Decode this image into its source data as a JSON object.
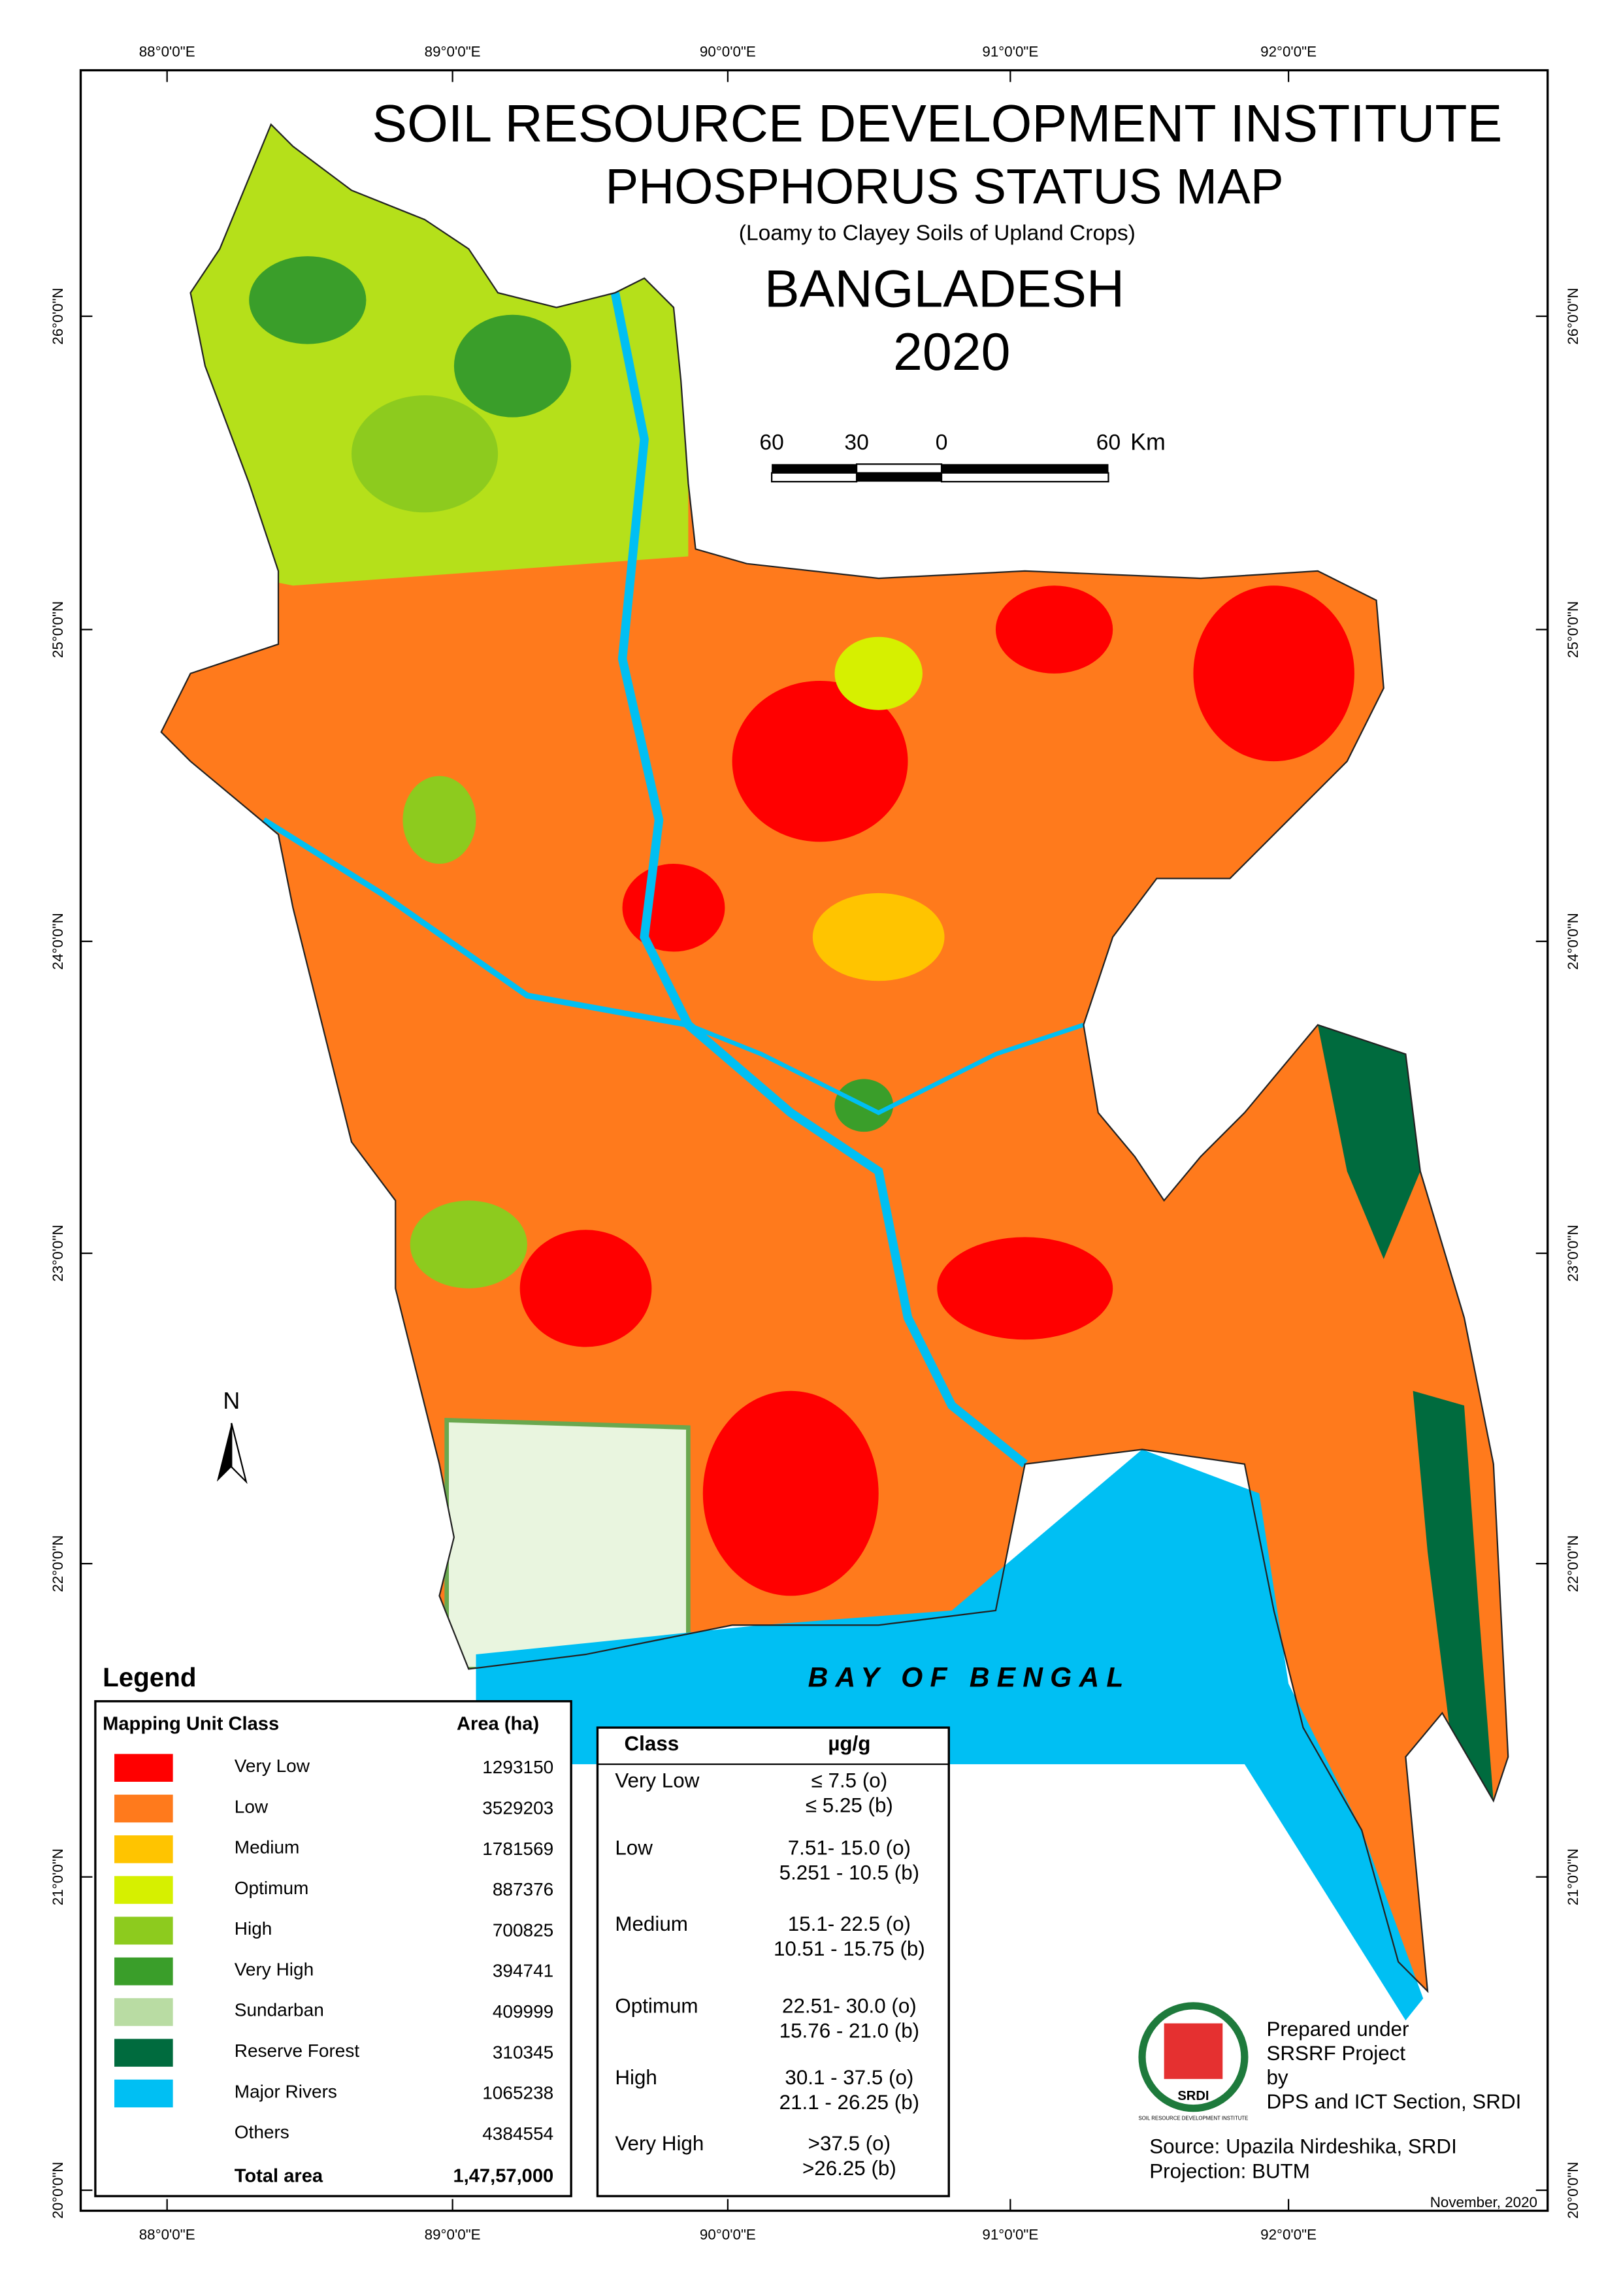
{
  "header": {
    "title": "SOIL RESOURCE DEVELOPMENT INSTITUTE",
    "map_title": "PHOSPHORUS STATUS MAP",
    "subtitle": "(Loamy to Clayey Soils of Upland Crops)",
    "country": "BANGLADESH",
    "year": "2020"
  },
  "scale_bar": {
    "labels": [
      "60",
      "30",
      "0",
      "60"
    ],
    "unit": "Km"
  },
  "graticule": {
    "longitudes": [
      "88°0'0\"E",
      "89°0'0\"E",
      "90°0'0\"E",
      "91°0'0\"E",
      "92°0'0\"E"
    ],
    "latitudes": [
      "26°0'0\"N",
      "25°0'0\"N",
      "24°0'0\"N",
      "23°0'0\"N",
      "22°0'0\"N",
      "21°0'0\"N",
      "20°0'0\"N"
    ]
  },
  "north": "N",
  "sea_label": "BAY OF BENGAL",
  "legend": {
    "title": "Legend",
    "headers": [
      "Mapping Unit  Class",
      "Area (ha)"
    ],
    "rows": [
      {
        "class": "Very Low",
        "area": "1293150",
        "color": "#ff0000"
      },
      {
        "class": "Low",
        "area": "3529203",
        "color": "#ff7a1c"
      },
      {
        "class": "Medium",
        "area": "1781569",
        "color": "#ffc400"
      },
      {
        "class": "Optimum",
        "area": "887376",
        "color": "#d6f000"
      },
      {
        "class": "High",
        "area": "700825",
        "color": "#8dcb1e"
      },
      {
        "class": "Very High",
        "area": "394741",
        "color": "#3a9e2a"
      },
      {
        "class": "Sundarban",
        "area": "409999",
        "color": "#b9dca3"
      },
      {
        "class": "Reserve Forest",
        "area": "310345",
        "color": "#006b3e"
      },
      {
        "class": "Major Rivers",
        "area": "1065238",
        "color": "#00bff3"
      },
      {
        "class": "Others",
        "area": "4384554"
      }
    ],
    "total_label": "Total area",
    "total": "1,47,57,000"
  },
  "class_table": {
    "headers": [
      "Class",
      "µg/g"
    ],
    "rows": [
      {
        "class": "Very Low",
        "ranges": [
          "≤ 7.5 (o)",
          "≤ 5.25 (b)"
        ]
      },
      {
        "class": "Low",
        "ranges": [
          "7.51- 15.0 (o)",
          "5.251 - 10.5 (b)"
        ]
      },
      {
        "class": "Medium",
        "ranges": [
          "15.1- 22.5 (o)",
          "10.51 - 15.75 (b)"
        ]
      },
      {
        "class": "Optimum",
        "ranges": [
          "22.51- 30.0 (o)",
          "15.76 - 21.0 (b)"
        ]
      },
      {
        "class": "High",
        "ranges": [
          "30.1 - 37.5 (o)",
          "21.1 - 26.25 (b)"
        ]
      },
      {
        "class": "Very High",
        "ranges": [
          ">37.5 (o)",
          ">26.25 (b)"
        ]
      }
    ]
  },
  "credits": {
    "logo": "SRDI",
    "logo_caption": "SOIL RESOURCE DEVELOPMENT INSTITUTE",
    "lines": [
      "Prepared under",
      "SRSRF Project",
      "by",
      "DPS and ICT Section, SRDI"
    ],
    "source": "Source: Upazila Nirdeshika, SRDI",
    "projection": "Projection: BUTM",
    "date": "November, 2020"
  }
}
